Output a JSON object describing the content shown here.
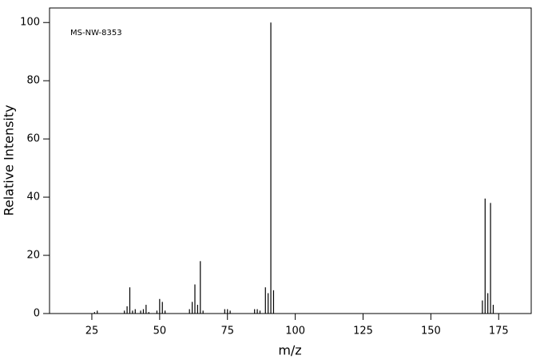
{
  "chart_data": {
    "type": "bar",
    "annotation": "MS-NW-8353",
    "x_label": "m/z",
    "y_label": "Relative Intensity",
    "x": [
      26,
      27,
      37,
      38,
      39,
      40,
      41,
      43,
      44,
      45,
      46,
      49,
      50,
      51,
      52,
      61,
      62,
      63,
      64,
      65,
      66,
      74,
      75,
      76,
      85,
      86,
      87,
      89,
      90,
      91,
      92,
      169,
      170,
      171,
      172,
      173
    ],
    "values": [
      0.5,
      1,
      1,
      2.5,
      9,
      1,
      1.5,
      1,
      1.5,
      3,
      0.5,
      1,
      5,
      4,
      1,
      1.5,
      4,
      10,
      3,
      18,
      1,
      1.5,
      1.5,
      1,
      1.5,
      1.5,
      1,
      9,
      7,
      100,
      8,
      4.5,
      39.5,
      7,
      38,
      3
    ],
    "color": "#000000",
    "xlim": [
      9.4,
      187
    ],
    "ylim": [
      0,
      105
    ],
    "xticks": [
      25,
      50,
      75,
      100,
      125,
      150,
      175
    ],
    "yticks": [
      0,
      20,
      40,
      60,
      80,
      100
    ]
  }
}
